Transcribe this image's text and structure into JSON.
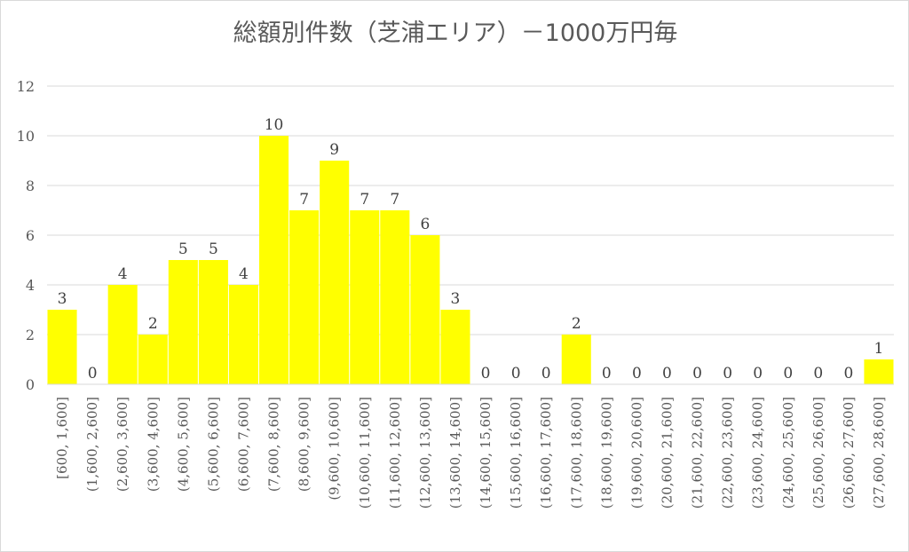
{
  "chart_data": {
    "type": "bar",
    "title": "総額別件数（芝浦エリア）－1000万円毎",
    "categories": [
      "[600, 1,600]",
      "(1,600, 2,600]",
      "(2,600, 3,600]",
      "(3,600, 4,600]",
      "(4,600, 5,600]",
      "(5,600, 6,600]",
      "(6,600, 7,600]",
      "(7,600, 8,600]",
      "(8,600, 9,600]",
      "(9,600, 10,600]",
      "(10,600, 11,600]",
      "(11,600, 12,600]",
      "(12,600, 13,600]",
      "(13,600, 14,600]",
      "(14,600, 15,600]",
      "(15,600, 16,600]",
      "(16,600, 17,600]",
      "(17,600, 18,600]",
      "(18,600, 19,600]",
      "(19,600, 20,600]",
      "(20,600, 21,600]",
      "(21,600, 22,600]",
      "(22,600, 23,600]",
      "(23,600, 24,600]",
      "(24,600, 25,600]",
      "(25,600, 26,600]",
      "(26,600, 27,600]",
      "(27,600, 28,600]"
    ],
    "values": [
      3,
      0,
      4,
      2,
      5,
      5,
      4,
      10,
      7,
      9,
      7,
      7,
      6,
      3,
      0,
      0,
      0,
      2,
      0,
      0,
      0,
      0,
      0,
      0,
      0,
      0,
      0,
      1
    ],
    "yticks": [
      "0",
      "2",
      "4",
      "6",
      "8",
      "10",
      "12"
    ],
    "ylim": [
      0,
      12
    ],
    "grid": true,
    "legend": "none",
    "bar_color": "#ffff00",
    "grid_color": "#d9d9d9"
  }
}
